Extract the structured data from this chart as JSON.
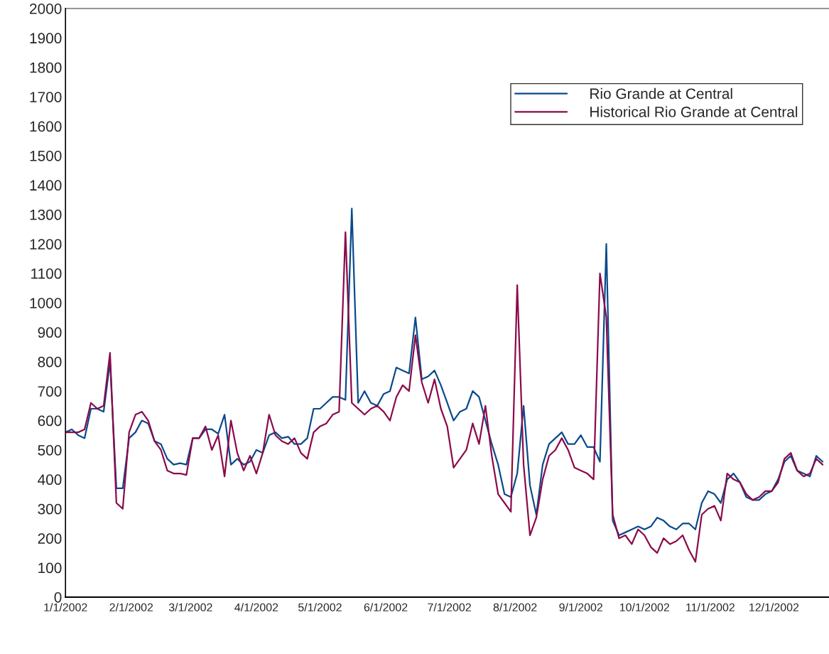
{
  "chart_data": {
    "type": "line",
    "x": [
      "2002-01-01",
      "2002-01-04",
      "2002-01-07",
      "2002-01-10",
      "2002-01-13",
      "2002-01-16",
      "2002-01-19",
      "2002-01-22",
      "2002-01-25",
      "2002-01-28",
      "2002-01-31",
      "2002-02-03",
      "2002-02-06",
      "2002-02-09",
      "2002-02-12",
      "2002-02-15",
      "2002-02-18",
      "2002-02-21",
      "2002-02-24",
      "2002-02-27",
      "2002-03-02",
      "2002-03-05",
      "2002-03-08",
      "2002-03-11",
      "2002-03-14",
      "2002-03-17",
      "2002-03-20",
      "2002-03-23",
      "2002-03-26",
      "2002-03-29",
      "2002-04-01",
      "2002-04-04",
      "2002-04-07",
      "2002-04-10",
      "2002-04-13",
      "2002-04-16",
      "2002-04-19",
      "2002-04-22",
      "2002-04-25",
      "2002-04-28",
      "2002-05-01",
      "2002-05-04",
      "2002-05-07",
      "2002-05-10",
      "2002-05-13",
      "2002-05-16",
      "2002-05-19",
      "2002-05-22",
      "2002-05-25",
      "2002-05-28",
      "2002-05-31",
      "2002-06-03",
      "2002-06-06",
      "2002-06-09",
      "2002-06-12",
      "2002-06-15",
      "2002-06-18",
      "2002-06-21",
      "2002-06-24",
      "2002-06-27",
      "2002-06-30",
      "2002-07-03",
      "2002-07-06",
      "2002-07-09",
      "2002-07-12",
      "2002-07-15",
      "2002-07-18",
      "2002-07-21",
      "2002-07-24",
      "2002-07-27",
      "2002-07-30",
      "2002-08-02",
      "2002-08-05",
      "2002-08-08",
      "2002-08-11",
      "2002-08-14",
      "2002-08-17",
      "2002-08-20",
      "2002-08-23",
      "2002-08-26",
      "2002-08-29",
      "2002-09-01",
      "2002-09-04",
      "2002-09-07",
      "2002-09-10",
      "2002-09-13",
      "2002-09-16",
      "2002-09-19",
      "2002-09-22",
      "2002-09-25",
      "2002-09-28",
      "2002-10-01",
      "2002-10-04",
      "2002-10-07",
      "2002-10-10",
      "2002-10-13",
      "2002-10-16",
      "2002-10-19",
      "2002-10-22",
      "2002-10-25",
      "2002-10-28",
      "2002-10-31",
      "2002-11-03",
      "2002-11-06",
      "2002-11-09",
      "2002-11-12",
      "2002-11-15",
      "2002-11-18",
      "2002-11-21",
      "2002-11-24",
      "2002-11-27",
      "2002-11-30",
      "2002-12-03",
      "2002-12-06",
      "2002-12-09",
      "2002-12-12",
      "2002-12-15",
      "2002-12-18",
      "2002-12-21",
      "2002-12-24"
    ],
    "series": [
      {
        "name": "Rio Grande at Central",
        "color": "#0b4a8b",
        "values": [
          560,
          570,
          550,
          540,
          640,
          640,
          630,
          800,
          370,
          370,
          540,
          560,
          600,
          590,
          530,
          520,
          470,
          450,
          455,
          450,
          540,
          540,
          570,
          570,
          555,
          620,
          450,
          470,
          450,
          460,
          500,
          490,
          550,
          560,
          540,
          545,
          520,
          520,
          540,
          640,
          640,
          660,
          680,
          680,
          670,
          1320,
          660,
          700,
          660,
          650,
          690,
          700,
          780,
          770,
          760,
          950,
          740,
          750,
          770,
          720,
          660,
          600,
          630,
          640,
          700,
          680,
          600,
          520,
          450,
          350,
          340,
          420,
          650,
          380,
          280,
          450,
          520,
          540,
          560,
          520,
          520,
          550,
          510,
          510,
          460,
          1200,
          260,
          210,
          220,
          230,
          240,
          230,
          240,
          270,
          260,
          240,
          230,
          250,
          250,
          230,
          320,
          360,
          350,
          320,
          400,
          420,
          390,
          340,
          330,
          330,
          350,
          360,
          400,
          460,
          480,
          430,
          420,
          410,
          480,
          460
        ]
      },
      {
        "name": "Historical Rio Grande at Central",
        "color": "#8b0a4a",
        "values": [
          560,
          560,
          560,
          570,
          660,
          640,
          650,
          830,
          320,
          300,
          560,
          620,
          630,
          600,
          530,
          500,
          430,
          420,
          420,
          415,
          540,
          540,
          580,
          500,
          550,
          410,
          600,
          490,
          430,
          480,
          420,
          490,
          620,
          550,
          530,
          520,
          540,
          490,
          470,
          560,
          580,
          590,
          620,
          630,
          1240,
          660,
          640,
          620,
          640,
          650,
          630,
          600,
          680,
          720,
          700,
          890,
          730,
          660,
          740,
          640,
          580,
          440,
          470,
          500,
          590,
          520,
          650,
          480,
          350,
          320,
          290,
          1060,
          450,
          210,
          270,
          400,
          480,
          500,
          540,
          500,
          440,
          430,
          420,
          400,
          1100,
          950,
          280,
          200,
          210,
          180,
          230,
          210,
          170,
          150,
          200,
          180,
          190,
          210,
          160,
          120,
          280,
          300,
          310,
          260,
          420,
          400,
          390,
          350,
          330,
          340,
          360,
          360,
          390,
          470,
          490,
          430,
          410,
          420,
          470,
          450
        ]
      }
    ],
    "xlim": [
      "2002-01-01",
      "2002-12-27"
    ],
    "xticks": [
      {
        "value": "2002-01-01",
        "label": "1/1/2002"
      },
      {
        "value": "2002-02-01",
        "label": "2/1/2002"
      },
      {
        "value": "2002-03-01",
        "label": "3/1/2002"
      },
      {
        "value": "2002-04-01",
        "label": "4/1/2002"
      },
      {
        "value": "2002-05-01",
        "label": "5/1/2002"
      },
      {
        "value": "2002-06-01",
        "label": "6/1/2002"
      },
      {
        "value": "2002-07-01",
        "label": "7/1/2002"
      },
      {
        "value": "2002-08-01",
        "label": "8/1/2002"
      },
      {
        "value": "2002-09-01",
        "label": "9/1/2002"
      },
      {
        "value": "2002-10-01",
        "label": "10/1/2002"
      },
      {
        "value": "2002-11-01",
        "label": "11/1/2002"
      },
      {
        "value": "2002-12-01",
        "label": "12/1/2002"
      }
    ],
    "ylim": [
      0,
      2000
    ],
    "yticks": [
      0,
      100,
      200,
      300,
      400,
      500,
      600,
      700,
      800,
      900,
      1000,
      1100,
      1200,
      1300,
      1400,
      1500,
      1600,
      1700,
      1800,
      1900,
      2000
    ],
    "grid": false,
    "legend": "top right",
    "marker": "none",
    "line_style": "solid"
  }
}
